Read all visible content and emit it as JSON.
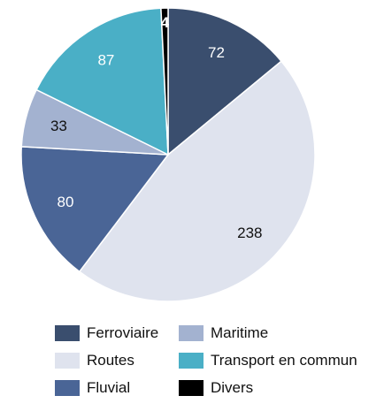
{
  "chart_data": {
    "type": "pie",
    "title": "",
    "categories": [
      "Ferroviaire",
      "Routes",
      "Fluvial",
      "Maritime",
      "Transport en commun",
      "Divers"
    ],
    "values": [
      72,
      238,
      80,
      33,
      87,
      4
    ],
    "colors": [
      "#3a4e6e",
      "#dfe3ee",
      "#4a6596",
      "#a3b2d0",
      "#4aafc6",
      "#000000"
    ],
    "label_colors": [
      "#ffffff",
      "#111111",
      "#ffffff",
      "#111111",
      "#ffffff",
      "#ffffff"
    ],
    "start_angle_deg": 0,
    "direction": "clockwise",
    "legend_position": "bottom",
    "legend_order": [
      0,
      3,
      1,
      4,
      2,
      5
    ]
  }
}
